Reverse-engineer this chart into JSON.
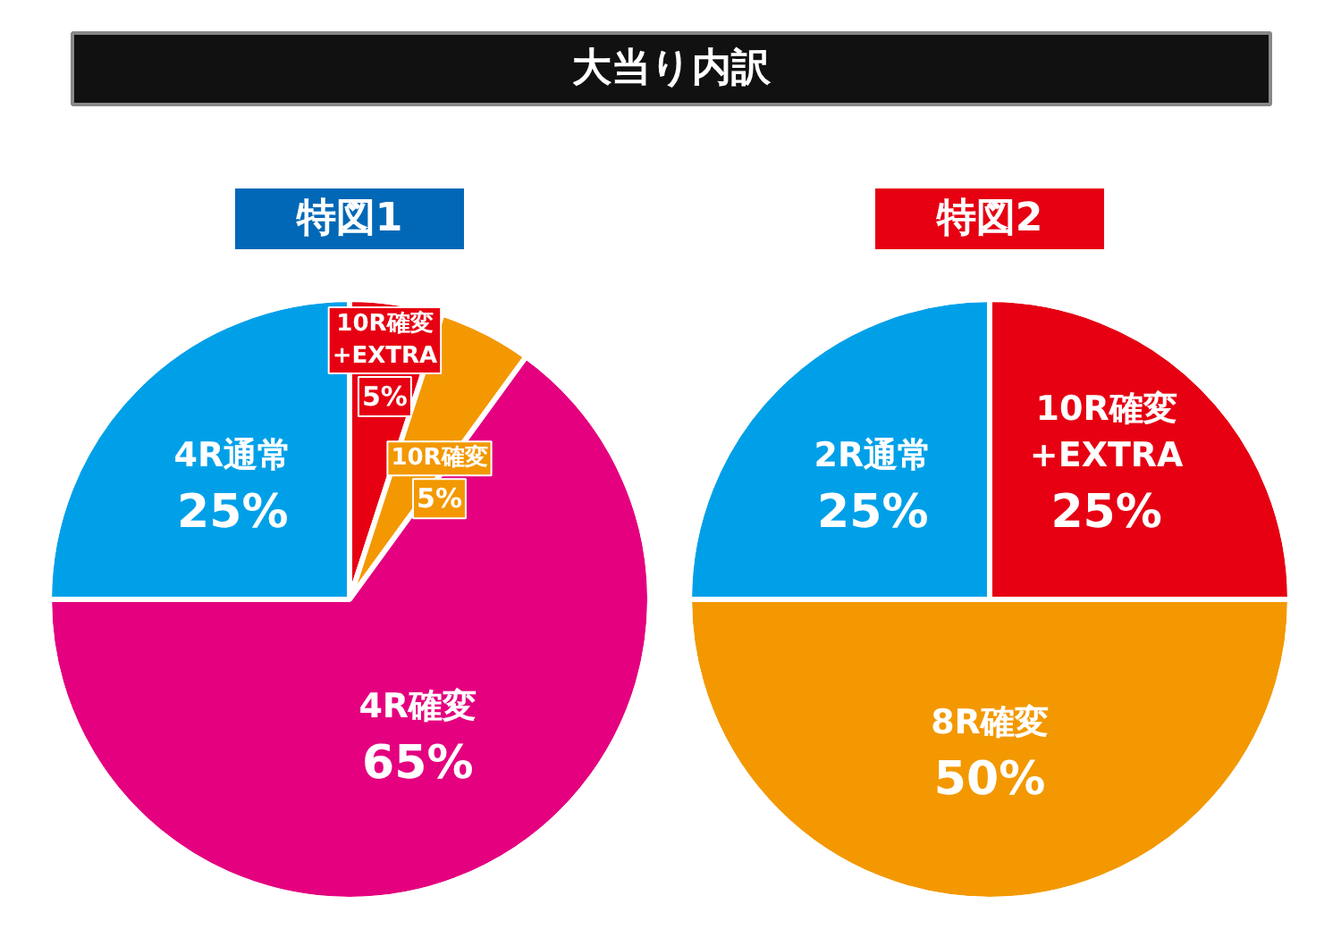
{
  "chart_data": [
    {
      "type": "other",
      "title": "大当り内訳"
    },
    {
      "type": "pie",
      "title": "特図1",
      "categories": [
        "10R確変\n+EXTRA",
        "10R確変",
        "4R確変",
        "4R通常"
      ],
      "values": [
        5,
        5,
        65,
        25
      ],
      "colors": [
        "#e60012",
        "#f39800",
        "#e4007f",
        "#00a0e9"
      ],
      "value_labels": [
        "5%",
        "5%",
        "65%",
        "25%"
      ]
    },
    {
      "type": "pie",
      "title": "特図2",
      "categories": [
        "10R確変\n+EXTRA",
        "8R確変",
        "2R通常"
      ],
      "values": [
        25,
        50,
        25
      ],
      "colors": [
        "#e60012",
        "#f39800",
        "#00a0e9"
      ],
      "value_labels": [
        "25%",
        "50%",
        "25%"
      ]
    }
  ]
}
